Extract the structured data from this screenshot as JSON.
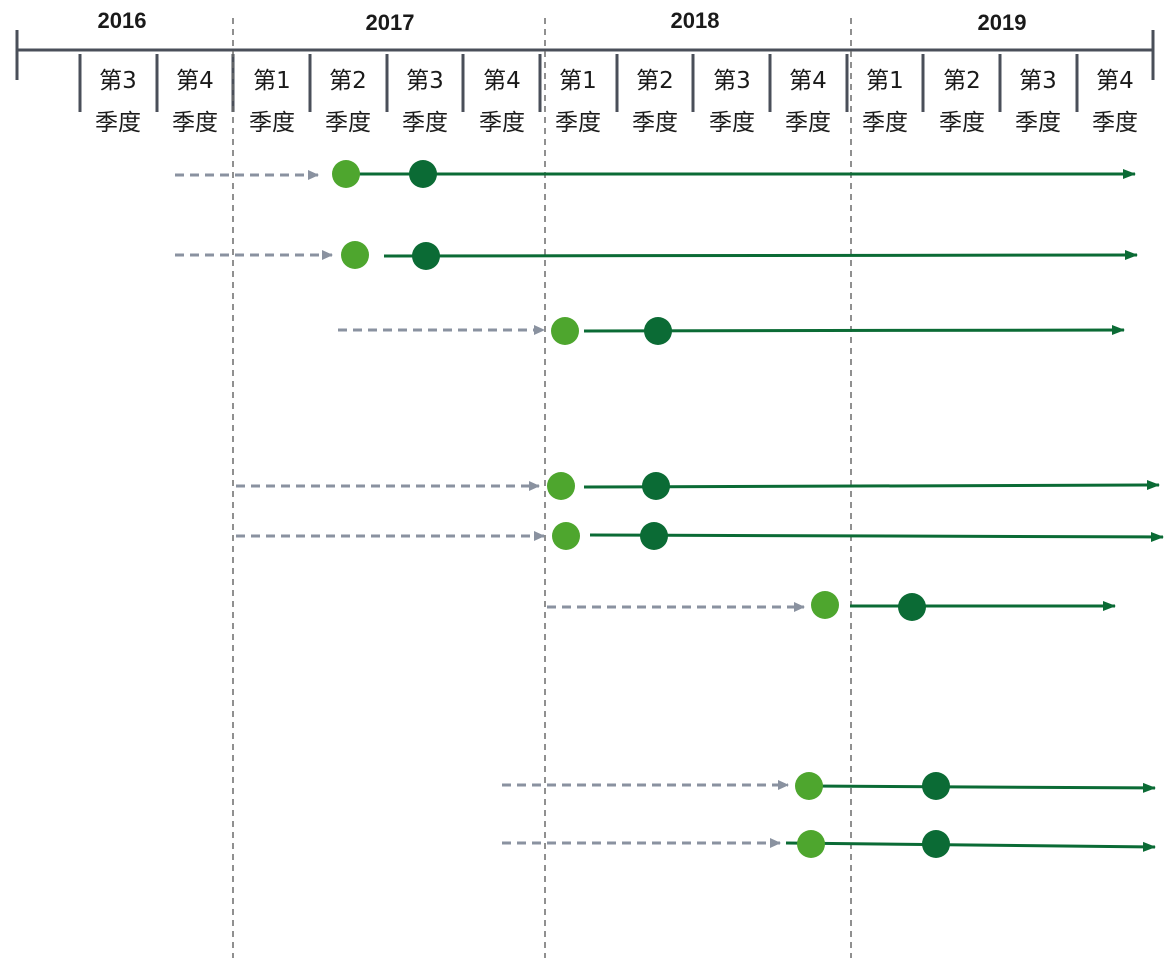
{
  "timeline": {
    "years": [
      "2016",
      "2017",
      "2018",
      "2019"
    ],
    "quarters": [
      {
        "year": "2016",
        "line1": "第3",
        "line2": "季度"
      },
      {
        "year": "2016",
        "line1": "第4",
        "line2": "季度"
      },
      {
        "year": "2017",
        "line1": "第1",
        "line2": "季度"
      },
      {
        "year": "2017",
        "line1": "第2",
        "line2": "季度"
      },
      {
        "year": "2017",
        "line1": "第3",
        "line2": "季度"
      },
      {
        "year": "2017",
        "line1": "第4",
        "line2": "季度"
      },
      {
        "year": "2018",
        "line1": "第1",
        "line2": "季度"
      },
      {
        "year": "2018",
        "line1": "第2",
        "line2": "季度"
      },
      {
        "year": "2018",
        "line1": "第3",
        "line2": "季度"
      },
      {
        "year": "2018",
        "line1": "第4",
        "line2": "季度"
      },
      {
        "year": "2019",
        "line1": "第1",
        "line2": "季度"
      },
      {
        "year": "2019",
        "line1": "第2",
        "line2": "季度"
      },
      {
        "year": "2019",
        "line1": "第3",
        "line2": "季度"
      },
      {
        "year": "2019",
        "line1": "第4",
        "line2": "季度"
      }
    ]
  },
  "colors": {
    "axis": "#4a4f59",
    "divider": "#6b6b6b",
    "dashed_arrow": "#8a92a0",
    "solid_line": "#0b6b35",
    "light_dot": "#4ea62e",
    "dark_dot": "#0b6b35"
  }
}
